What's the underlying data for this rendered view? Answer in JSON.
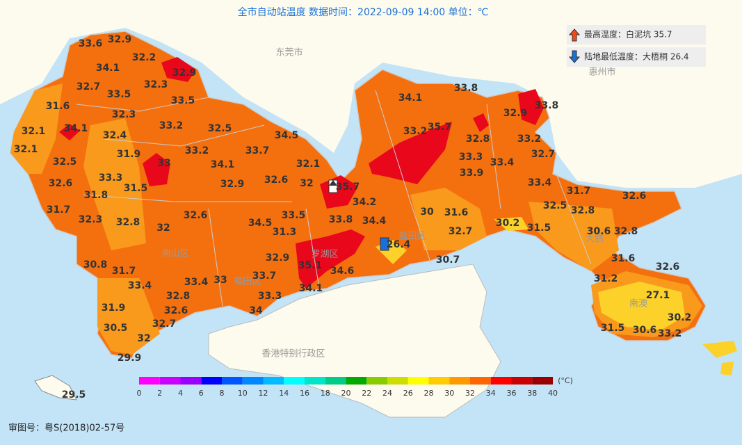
{
  "header": {
    "title": "全市自动站温度  数据时间：2022-09-09 14:00  单位：℃"
  },
  "legend": {
    "max": "最高温度：白泥坑 35.7",
    "min": "陆地最低温度：大梧桐 26.4"
  },
  "places": [
    "东莞市",
    "惠州市",
    "香港特别行政区",
    "南山区",
    "福田区",
    "罗湖区",
    "盐田区",
    "大鹏",
    "南澳"
  ],
  "stations": [
    33.6,
    32.9,
    32.2,
    34.1,
    32.9,
    32.7,
    32.3,
    33.5,
    33.5,
    31.6,
    32.3,
    32.1,
    34.1,
    33.2,
    32.5,
    32.4,
    34.5,
    32.1,
    31.9,
    33.2,
    33.7,
    32.5,
    33,
    34.1,
    32.1,
    33.3,
    32.6,
    32.9,
    32.6,
    32,
    31.5,
    31.8,
    31.7,
    32.6,
    33.5,
    32.3,
    32.8,
    34.5,
    32,
    31.3,
    33.8,
    34.2,
    34.4,
    30.8,
    31.7,
    32.9,
    35.1,
    34.6,
    33.4,
    33.4,
    33,
    33.7,
    34.1,
    32.8,
    33.3,
    31.9,
    32.6,
    34,
    32.7,
    30.5,
    32,
    29.9,
    29.5,
    34.1,
    33.8,
    33.8,
    32.9,
    35.7,
    33.2,
    32.8,
    33.2,
    33.3,
    33.4,
    32.7,
    33.9,
    35.7,
    33.4,
    31.7,
    32.6,
    32.5,
    32.8,
    30,
    31.6,
    30.2,
    31.5,
    30.6,
    32.8,
    32.7,
    26.4,
    30.7,
    31.6,
    32.6,
    31.2,
    27.1,
    30.2,
    31.5,
    30.6,
    33.2
  ],
  "colorbar": {
    "unit": "(°C)",
    "ticks": [
      0,
      2,
      4,
      6,
      8,
      10,
      12,
      14,
      16,
      18,
      20,
      22,
      24,
      26,
      28,
      30,
      32,
      34,
      36,
      38,
      40
    ],
    "colors": [
      "#ff00ff",
      "#cc00ff",
      "#9900ff",
      "#0000ff",
      "#0055ff",
      "#0088ff",
      "#00bbff",
      "#00ffff",
      "#00e5cc",
      "#00cc88",
      "#00aa00",
      "#88cc00",
      "#ccdd00",
      "#ffff00",
      "#ffcc00",
      "#ff9900",
      "#ff6600",
      "#ff0000",
      "#cc0000",
      "#990000"
    ]
  },
  "footer": "审图号：粤S(2018)02-57号"
}
